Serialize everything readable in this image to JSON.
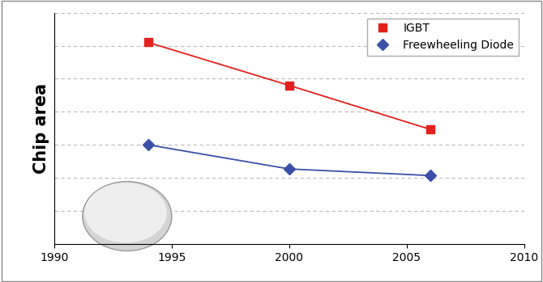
{
  "chart_data": {
    "type": "line",
    "y_label": "Chip area",
    "x": [
      1994,
      2000,
      2006
    ],
    "series": [
      {
        "name": "IGBT",
        "color": "#e3211c",
        "marker": "square",
        "values": [
          6.1,
          4.8,
          3.47
        ]
      },
      {
        "name": "Freewheeling Diode",
        "color": "#3a50a8",
        "marker": "diamond",
        "values": [
          3.0,
          2.27,
          2.07
        ]
      }
    ],
    "xlim": [
      1990,
      2010
    ],
    "xticks": [
      1990,
      1995,
      2000,
      2005,
      2010
    ],
    "ylim": [
      0,
      7
    ],
    "yticks": [
      1,
      2,
      3,
      4,
      5,
      6,
      7
    ],
    "grid": true,
    "legend": "upper right",
    "tick_labels": "x"
  }
}
